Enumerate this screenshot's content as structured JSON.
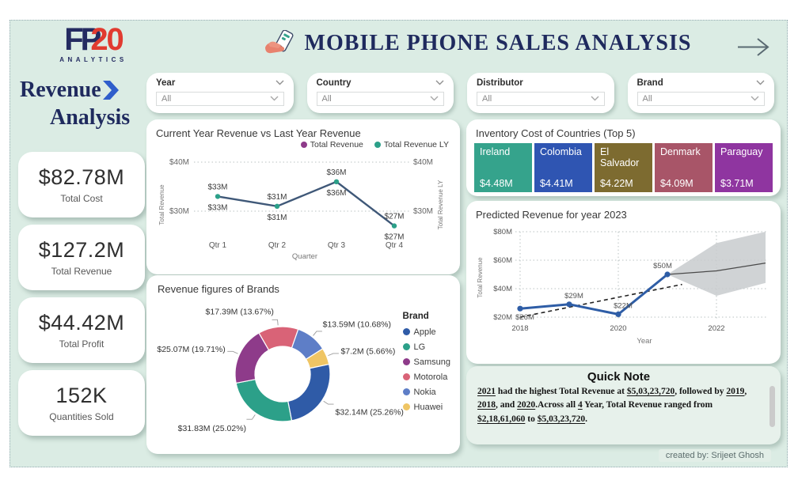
{
  "header": {
    "logo": {
      "main": "FP",
      "accent": "20",
      "sub": "ANALYTICS"
    },
    "title": "MOBILE PHONE SALES ANALYSIS"
  },
  "sidebar": {
    "heading_line1": "Revenue",
    "heading_line2": "Analysis",
    "kpis": [
      {
        "value": "$82.78M",
        "label": "Total Cost"
      },
      {
        "value": "$127.2M",
        "label": "Total Revenue"
      },
      {
        "value": "$44.42M",
        "label": "Total Profit"
      },
      {
        "value": "152K",
        "label": "Quantities Sold"
      }
    ]
  },
  "filters": [
    {
      "label": "Year",
      "value": "All",
      "header_chevron": true
    },
    {
      "label": "Country",
      "value": "All",
      "header_chevron": true
    },
    {
      "label": "Distributor",
      "value": "All",
      "header_chevron": false
    },
    {
      "label": "Brand",
      "value": "All",
      "header_chevron": true
    }
  ],
  "chart_data": [
    {
      "id": "cy_vs_ly",
      "type": "line",
      "title": "Current Year Revenue vs Last Year Revenue",
      "categories": [
        "Qtr 1",
        "Qtr 2",
        "Qtr 3",
        "Qtr 4"
      ],
      "series": [
        {
          "name": "Total Revenue",
          "color": "#8E3B8A",
          "values": [
            33,
            31,
            36,
            27
          ],
          "labels": [
            "$33M",
            "$31M",
            "$36M",
            "$27M"
          ]
        },
        {
          "name": "Total Revenue LY",
          "color": "#2CA089",
          "values": [
            33,
            31,
            36,
            27
          ],
          "labels": [
            "$33M",
            "$31M",
            "$36M",
            "$27M"
          ]
        }
      ],
      "line_color": "#3F5878",
      "xlabel": "Quarter",
      "ylabel_left": "Total Revenue",
      "ylabel_right": "Total Revenue LY",
      "yticks": [
        30,
        40
      ],
      "ytick_labels": [
        "$30M",
        "$40M"
      ],
      "ylim": [
        25,
        41.5
      ],
      "grid": "dotted-horizontal",
      "legend_position": "top-right"
    },
    {
      "id": "brand_donut",
      "type": "pie",
      "title": "Revenue figures of Brands",
      "legend_title": "Brand",
      "legend_order": [
        "Apple",
        "LG",
        "Samsung",
        "Motorola",
        "Nokia",
        "Huawei"
      ],
      "start_angle": -30,
      "slices": [
        {
          "name": "Motorola",
          "value_m": 17.39,
          "pct": 13.67,
          "label": "$17.39M (13.67%)",
          "color": "#D96377"
        },
        {
          "name": "Nokia",
          "value_m": 13.59,
          "pct": 10.68,
          "label": "$13.59M (10.68%)",
          "color": "#5E7EC7"
        },
        {
          "name": "Huawei",
          "value_m": 7.2,
          "pct": 5.66,
          "label": "$7.2M (5.66%)",
          "color": "#EFC564"
        },
        {
          "name": "Apple",
          "value_m": 32.14,
          "pct": 25.26,
          "label": "$32.14M (25.26%)",
          "color": "#2F5BA7"
        },
        {
          "name": "LG",
          "value_m": 31.83,
          "pct": 25.02,
          "label": "$31.83M (25.02%)",
          "color": "#2CA089"
        },
        {
          "name": "Samsung",
          "value_m": 25.07,
          "pct": 19.71,
          "label": "$25.07M (19.71%)",
          "color": "#8E3B8A"
        }
      ]
    },
    {
      "id": "inventory",
      "type": "bar",
      "title": "Inventory Cost of Countries (Top 5)",
      "items": [
        {
          "country": "Ireland",
          "value": "$4.48M",
          "color": "#35A38C"
        },
        {
          "country": "Colombia",
          "value": "$4.41M",
          "color": "#2F55B2"
        },
        {
          "country": "El Salvador",
          "value": "$4.22M",
          "color": "#7D6B30"
        },
        {
          "country": "Denmark",
          "value": "$4.09M",
          "color": "#A85568"
        },
        {
          "country": "Paraguay",
          "value": "$3.71M",
          "color": "#8F35A0"
        }
      ]
    },
    {
      "id": "forecast",
      "type": "line",
      "title": "Predicted Revenue for year 2023",
      "x": [
        2018,
        2019,
        2020,
        2021
      ],
      "values": [
        26,
        29,
        22,
        50
      ],
      "point_labels": [
        "$26M",
        "$29M",
        "$22M",
        "$50M"
      ],
      "line_color": "#2E5DA6",
      "trend": {
        "x": [
          2018,
          2021.3
        ],
        "values": [
          20,
          43
        ],
        "style": "dashed",
        "color": "#222222"
      },
      "forecast": {
        "x": [
          2021,
          2022,
          2023
        ],
        "values": [
          50,
          52.5,
          58
        ],
        "upper": [
          50,
          72,
          80
        ],
        "lower": [
          50,
          35,
          44
        ],
        "band_color": "#C8CBCE",
        "line_color": "#4a4a4a"
      },
      "xticks": [
        2018,
        2020,
        2022
      ],
      "yticks": [
        20,
        40,
        60,
        80
      ],
      "ytick_labels": [
        "$20M",
        "$40M",
        "$60M",
        "$80M"
      ],
      "xlabel": "Year",
      "ylabel": "Total Revenue",
      "xlim": [
        2018,
        2023
      ],
      "ylim": [
        20,
        80
      ],
      "grid": "dotted"
    }
  ],
  "quick_note": {
    "title": "Quick Note",
    "segments": [
      {
        "text": "2021",
        "u": true
      },
      {
        "text": " had the highest Total Revenue at ",
        "u": false
      },
      {
        "text": "$5,03,23,720",
        "u": true
      },
      {
        "text": ", followed by ",
        "u": false
      },
      {
        "text": "2019",
        "u": true
      },
      {
        "text": ", ",
        "u": false
      },
      {
        "text": "2018",
        "u": true
      },
      {
        "text": ", and ",
        "u": false
      },
      {
        "text": "2020",
        "u": true
      },
      {
        "text": ".Across all ",
        "u": false
      },
      {
        "text": "4",
        "u": true
      },
      {
        "text": " Year, Total Revenue ranged from ",
        "u": false
      },
      {
        "text": "$2,18,61,060",
        "u": true
      },
      {
        "text": " to ",
        "u": false
      },
      {
        "text": "$5,03,23,720",
        "u": true
      },
      {
        "text": ".",
        "u": false
      }
    ]
  },
  "footer": {
    "credit": "created by: Srijeet Ghosh"
  },
  "colors": {
    "background": "#DBECE4",
    "card": "#FFFFFF",
    "navy": "#1F2A5E",
    "logo_red": "#E13B30",
    "note_bg": "#E7F1EB",
    "accent_blue": "#2F5ECB"
  }
}
